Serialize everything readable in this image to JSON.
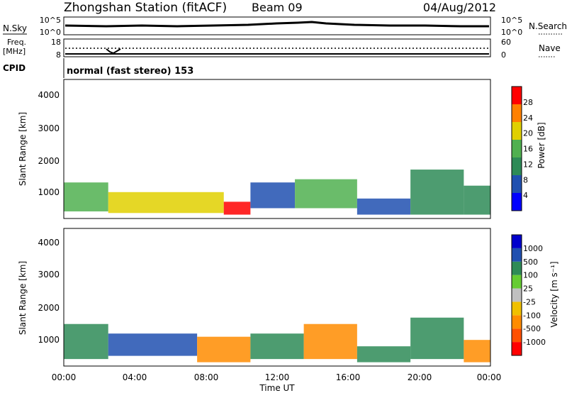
{
  "header": {
    "title": "Zhongshan Station (fitACF)",
    "beam": "Beam 09",
    "date": "04/Aug/2012"
  },
  "summary_panels": {
    "nsky_label": "N.Sky",
    "nsky_ticks": [
      "10^5",
      "10^0"
    ],
    "nsearch_label": "N.Search",
    "nsearch_ticks": [
      "10^5",
      "10^0"
    ],
    "freq_label": "Freq.",
    "freq_unit": "[MHz]",
    "freq_ticks": [
      "18",
      "8"
    ],
    "nave_label": "Nave",
    "nave_ticks": [
      "60",
      "0"
    ],
    "cpid_label": "CPID",
    "cpid_value": "normal (fast stereo) 153"
  },
  "chart_data": [
    {
      "type": "heatmap",
      "panel": "power",
      "ylabel": "Slant Range [km]",
      "yticks": [
        "4000",
        "3000",
        "2000",
        "1000"
      ],
      "ylim": [
        180,
        4500
      ],
      "xlim_hours": [
        0,
        24
      ],
      "colorbar_label": "Power [dB]",
      "colorbar_ticks": [
        "28",
        "24",
        "20",
        "16",
        "12",
        "8",
        "4"
      ],
      "colors": [
        "#0000ff",
        "#2050b0",
        "#2e8b57",
        "#50b050",
        "#e0d000",
        "#ff8000",
        "#ff0000"
      ],
      "regions": [
        {
          "t0": 0.0,
          "t1": 2.5,
          "r0": 400,
          "r1": 1300,
          "level": 3
        },
        {
          "t0": 2.5,
          "t1": 9.0,
          "r0": 350,
          "r1": 1000,
          "level": 4
        },
        {
          "t0": 9.0,
          "t1": 10.5,
          "r0": 300,
          "r1": 700,
          "level": 6
        },
        {
          "t0": 10.5,
          "t1": 13.0,
          "r0": 500,
          "r1": 1300,
          "level": 1
        },
        {
          "t0": 13.0,
          "t1": 16.5,
          "r0": 500,
          "r1": 1400,
          "level": 3
        },
        {
          "t0": 16.5,
          "t1": 19.5,
          "r0": 300,
          "r1": 800,
          "level": 1
        },
        {
          "t0": 19.5,
          "t1": 22.5,
          "r0": 300,
          "r1": 1700,
          "level": 2
        },
        {
          "t0": 22.5,
          "t1": 24.0,
          "r0": 300,
          "r1": 1200,
          "level": 2
        }
      ]
    },
    {
      "type": "heatmap",
      "panel": "velocity",
      "ylabel": "Slant Range [km]",
      "yticks": [
        "4000",
        "3000",
        "2000",
        "1000"
      ],
      "ylim": [
        180,
        4500
      ],
      "xlim_hours": [
        0,
        24
      ],
      "colorbar_label": "Velocity [m s⁻¹]",
      "colorbar_ticks": [
        "1000",
        "500",
        "100",
        "25",
        "-25",
        "-100",
        "-500",
        "-1000"
      ],
      "colors": [
        "#ff0000",
        "#ff5000",
        "#ff8c00",
        "#f0c000",
        "#c0c0c0",
        "#66cc33",
        "#2e8b57",
        "#2050b0",
        "#0000cc"
      ],
      "xticks": [
        "00:00",
        "04:00",
        "08:00",
        "12:00",
        "16:00",
        "20:00",
        "00:00"
      ],
      "xlabel": "Time UT",
      "regions": [
        {
          "t0": 0.0,
          "t1": 2.5,
          "r0": 400,
          "r1": 1500,
          "level": 6
        },
        {
          "t0": 2.5,
          "t1": 7.5,
          "r0": 500,
          "r1": 1200,
          "level": 7
        },
        {
          "t0": 7.5,
          "t1": 10.5,
          "r0": 300,
          "r1": 1100,
          "level": 2
        },
        {
          "t0": 10.5,
          "t1": 13.5,
          "r0": 400,
          "r1": 1200,
          "level": 6
        },
        {
          "t0": 13.5,
          "t1": 16.5,
          "r0": 400,
          "r1": 1500,
          "level": 2
        },
        {
          "t0": 16.5,
          "t1": 19.5,
          "r0": 300,
          "r1": 800,
          "level": 6
        },
        {
          "t0": 19.5,
          "t1": 22.5,
          "r0": 400,
          "r1": 1700,
          "level": 6
        },
        {
          "t0": 22.5,
          "t1": 24.0,
          "r0": 300,
          "r1": 1000,
          "level": 2
        }
      ]
    }
  ]
}
